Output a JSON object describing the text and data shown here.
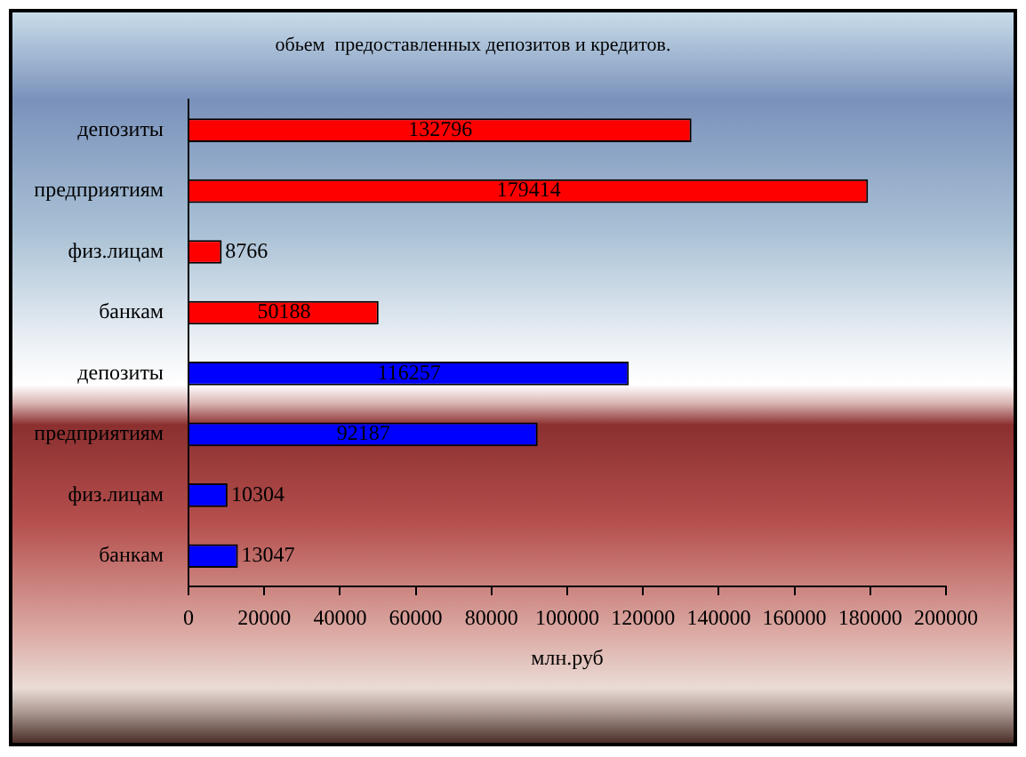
{
  "chart_data": {
    "type": "bar",
    "orientation": "horizontal",
    "title": "обьем  предоставленных депозитов и кредитов.",
    "xlabel": "млн.руб",
    "categories": [
      "депозиты",
      "предприятиям",
      "физ.лицам",
      "банкам",
      "депозиты",
      "предприятиям",
      "физ.лицам",
      "банкам"
    ],
    "values": [
      132796,
      179414,
      8766,
      50188,
      116257,
      92187,
      10304,
      13047
    ],
    "colors": [
      "#ff0000",
      "#ff0000",
      "#ff0000",
      "#ff0000",
      "#0000ff",
      "#0000ff",
      "#0000ff",
      "#0000ff"
    ],
    "xlim": [
      0,
      200000
    ],
    "xticks": [
      0,
      20000,
      40000,
      60000,
      80000,
      100000,
      120000,
      140000,
      160000,
      180000,
      200000
    ],
    "data_labels": true
  }
}
